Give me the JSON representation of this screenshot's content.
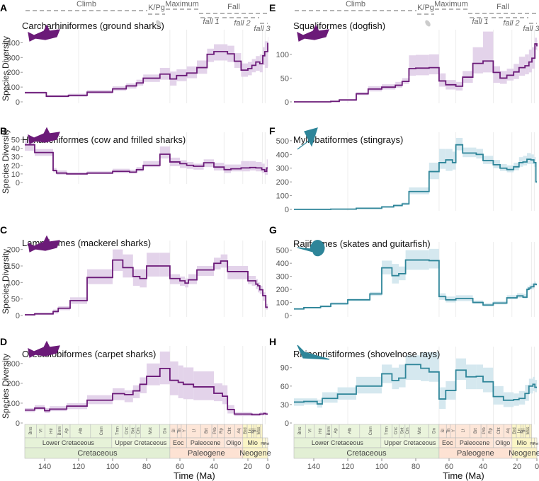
{
  "figure": {
    "xlabel": "Time (Ma)",
    "x_ticks": [
      140,
      120,
      100,
      80,
      60,
      40,
      20,
      0
    ],
    "ylabel": "Species Diversity",
    "phases": {
      "climb": "Climb",
      "kpg": "K/Pg",
      "maximum": "Maximum",
      "fall": "Fall",
      "fall1": "fall 1",
      "fall2": "fall 2",
      "fall3": "fall 3"
    },
    "colors": {
      "shark": "#6b1a78",
      "shark_band": "#e3d3ea",
      "ray": "#2e8599",
      "ray_band": "#d5e8ef",
      "grid": "#ececec",
      "axis_text": "#555555"
    },
    "timescale": {
      "stages": [
        "Brrs",
        "Vl",
        "Htr",
        "Brrm",
        "Ap",
        "Alb",
        "Cnm",
        "Tmn",
        "Cnc",
        "Snt",
        "Cm",
        "Mst",
        "Dn",
        "Sl",
        "Th",
        "Y",
        "Lt",
        "Brt",
        "Prb",
        "Rp",
        "Cht",
        "Aq",
        "Brd",
        "Ln",
        "Srr",
        "Trt",
        "Mss"
      ],
      "epochs": [
        "Lower Cretaceous",
        "Upper Cretaceous",
        "Eoc",
        "Paleocene",
        "Oligo",
        "Mio",
        "Plio",
        "Plei"
      ],
      "periods": [
        "Cretaceous",
        "Paleogene",
        "Neogene"
      ]
    }
  },
  "chart_data": [
    {
      "panel": "A",
      "title": "Carcharhiniformes (ground sharks)",
      "type": "line",
      "group": "shark",
      "icon": "hammerhead-shark-icon",
      "ylim": [
        0,
        450
      ],
      "yticks": [
        0,
        100,
        200,
        300,
        400
      ],
      "x": [
        152,
        139,
        126,
        115,
        100,
        92,
        86,
        82,
        72,
        66,
        62,
        56,
        50,
        44,
        40,
        32,
        28,
        24,
        20,
        16,
        12,
        8,
        5,
        3,
        0
      ],
      "values": [
        62,
        38,
        44,
        66,
        88,
        108,
        128,
        160,
        188,
        155,
        178,
        195,
        232,
        322,
        340,
        325,
        275,
        215,
        225,
        247,
        270,
        258,
        312,
        340,
        400
      ],
      "lower": [
        55,
        30,
        35,
        55,
        75,
        90,
        110,
        135,
        150,
        110,
        140,
        160,
        190,
        270,
        280,
        270,
        230,
        170,
        180,
        200,
        210,
        200,
        250,
        230,
        240
      ],
      "upper": [
        70,
        45,
        55,
        80,
        105,
        125,
        150,
        185,
        230,
        205,
        220,
        240,
        280,
        360,
        390,
        380,
        330,
        260,
        270,
        290,
        310,
        320,
        370,
        410,
        440
      ]
    },
    {
      "panel": "B",
      "title": "Hexanchiformes (cow and frilled sharks)",
      "type": "line",
      "group": "shark",
      "icon": "frilled-shark-icon",
      "ylim": [
        0,
        52
      ],
      "yticks": [
        0,
        10,
        20,
        30,
        40,
        50
      ],
      "x": [
        152,
        146,
        135,
        133,
        127,
        115,
        100,
        90,
        86,
        82,
        72,
        66,
        60,
        56,
        52,
        46,
        40,
        34,
        30,
        24,
        18,
        12,
        6,
        3,
        1
      ],
      "values": [
        44,
        35,
        14,
        11,
        10,
        11,
        13,
        12,
        15,
        20,
        33,
        24,
        22,
        20,
        19,
        23,
        18,
        15,
        16,
        17,
        17.5,
        17,
        15,
        13,
        17
      ],
      "lower": [
        37,
        31,
        12,
        9,
        9,
        10,
        11,
        11,
        13,
        18,
        28,
        19,
        17,
        16,
        15,
        18,
        14,
        11,
        13,
        13,
        14,
        13,
        11,
        9,
        9
      ],
      "upper": [
        50,
        39,
        17,
        14,
        12,
        13,
        16,
        15,
        18,
        25,
        42,
        29,
        26,
        24,
        22,
        27,
        23,
        21,
        21,
        25,
        25,
        24,
        22,
        18,
        27
      ]
    },
    {
      "panel": "C",
      "title": "Lamniformes (mackerel sharks)",
      "type": "line",
      "group": "shark",
      "icon": "mackerel-shark-icon",
      "ylim": [
        0,
        210
      ],
      "yticks": [
        0,
        50,
        100,
        150,
        200
      ],
      "x": [
        152,
        146,
        135,
        132,
        125,
        115,
        100,
        94,
        88,
        84,
        80,
        72,
        66,
        60,
        57,
        55,
        50,
        40,
        36,
        32,
        20,
        16,
        12,
        10,
        8,
        5,
        2
      ],
      "values": [
        2,
        5,
        12,
        22,
        45,
        115,
        168,
        145,
        118,
        112,
        150,
        150,
        112,
        105,
        98,
        108,
        138,
        158,
        165,
        133,
        105,
        105,
        95,
        90,
        78,
        60,
        25
      ],
      "lower": [
        0,
        2,
        6,
        16,
        35,
        95,
        135,
        115,
        90,
        85,
        118,
        118,
        95,
        90,
        85,
        95,
        120,
        140,
        145,
        110,
        95,
        90,
        80,
        70,
        65,
        45,
        18
      ],
      "upper": [
        4,
        8,
        18,
        28,
        55,
        140,
        200,
        185,
        140,
        140,
        190,
        190,
        125,
        118,
        112,
        125,
        150,
        175,
        185,
        150,
        120,
        120,
        110,
        100,
        90,
        70,
        35
      ]
    },
    {
      "panel": "D",
      "title": "Orectolobiformes (carpet sharks)",
      "type": "line",
      "group": "shark",
      "icon": "whale-shark-icon",
      "ylim": [
        0,
        360
      ],
      "yticks": [
        0,
        100,
        200,
        300
      ],
      "x": [
        152,
        146,
        140,
        137,
        127,
        115,
        100,
        93,
        88,
        84,
        80,
        72,
        66,
        61,
        58,
        52,
        40,
        35,
        32,
        28,
        16,
        8,
        4,
        2
      ],
      "values": [
        65,
        75,
        62,
        70,
        85,
        115,
        148,
        143,
        162,
        195,
        235,
        275,
        215,
        205,
        195,
        182,
        150,
        135,
        68,
        45,
        42,
        45,
        48,
        45
      ],
      "lower": [
        55,
        65,
        50,
        60,
        70,
        95,
        115,
        105,
        125,
        150,
        190,
        195,
        140,
        125,
        120,
        115,
        110,
        95,
        48,
        35,
        35,
        38,
        40,
        40
      ],
      "upper": [
        75,
        90,
        75,
        85,
        100,
        140,
        175,
        165,
        190,
        230,
        300,
        360,
        310,
        290,
        280,
        260,
        200,
        190,
        90,
        55,
        50,
        55,
        55,
        52
      ]
    },
    {
      "panel": "E",
      "title": "Squaliformes (dogfish)",
      "type": "line",
      "group": "shark",
      "icon": "dogfish-icon",
      "ylim": [
        0,
        140
      ],
      "yticks": [
        0,
        50,
        100
      ],
      "x": [
        152,
        130,
        125,
        115,
        108,
        100,
        92,
        88,
        84,
        80,
        72,
        66,
        62,
        56,
        52,
        46,
        40,
        34,
        30,
        26,
        22,
        18,
        12,
        8,
        5,
        2,
        0
      ],
      "values": [
        0,
        1,
        4,
        17,
        27,
        31,
        35,
        43,
        70,
        71,
        72,
        44,
        36,
        33,
        52,
        81,
        86,
        62,
        50,
        56,
        63,
        72,
        76,
        84,
        92,
        122,
        117
      ],
      "lower": [
        0,
        0,
        2,
        14,
        22,
        26,
        30,
        38,
        55,
        56,
        58,
        32,
        26,
        24,
        40,
        60,
        62,
        40,
        38,
        45,
        48,
        55,
        58,
        62,
        70,
        110,
        108
      ],
      "upper": [
        0,
        2,
        6,
        20,
        33,
        37,
        42,
        50,
        98,
        99,
        100,
        60,
        46,
        42,
        65,
        115,
        148,
        75,
        65,
        70,
        80,
        95,
        100,
        110,
        115,
        135,
        130
      ]
    },
    {
      "panel": "F",
      "title": "Myliobatiformes (stingrays)",
      "type": "line",
      "group": "ray",
      "icon": "stingray-icon",
      "ylim": [
        0,
        520
      ],
      "yticks": [
        0,
        100,
        200,
        300,
        400,
        500
      ],
      "x": [
        152,
        130,
        115,
        100,
        93,
        88,
        84,
        72,
        66,
        62,
        58,
        56,
        52,
        44,
        40,
        34,
        30,
        26,
        22,
        18,
        14,
        10,
        6,
        3,
        1
      ],
      "values": [
        0,
        2,
        8,
        18,
        28,
        40,
        130,
        275,
        340,
        360,
        340,
        470,
        410,
        400,
        355,
        325,
        300,
        290,
        310,
        340,
        345,
        365,
        360,
        340,
        200
      ],
      "lower": [
        0,
        0,
        5,
        12,
        22,
        32,
        110,
        220,
        295,
        280,
        290,
        430,
        380,
        370,
        330,
        300,
        280,
        270,
        285,
        310,
        320,
        330,
        330,
        310,
        190
      ],
      "upper": [
        0,
        4,
        12,
        24,
        36,
        50,
        160,
        340,
        440,
        440,
        420,
        520,
        450,
        440,
        390,
        360,
        330,
        320,
        340,
        380,
        390,
        410,
        400,
        380,
        210
      ]
    },
    {
      "panel": "G",
      "title": "Rajiformes (skates and guitarfish)",
      "type": "line",
      "group": "ray",
      "icon": "skate-icon",
      "ylim": [
        0,
        520
      ],
      "yticks": [
        0,
        100,
        200,
        300,
        400,
        500
      ],
      "x": [
        152,
        146,
        136,
        130,
        120,
        107,
        100,
        94,
        90,
        86,
        72,
        66,
        62,
        56,
        46,
        40,
        34,
        26,
        20,
        14,
        10,
        8,
        6,
        3,
        1
      ],
      "values": [
        50,
        60,
        70,
        90,
        120,
        165,
        365,
        305,
        320,
        425,
        420,
        145,
        120,
        130,
        100,
        80,
        95,
        135,
        150,
        140,
        200,
        210,
        220,
        240,
        237
      ],
      "lower": [
        45,
        55,
        60,
        80,
        110,
        150,
        315,
        245,
        270,
        350,
        360,
        120,
        100,
        110,
        90,
        70,
        85,
        125,
        135,
        130,
        185,
        195,
        200,
        230,
        230
      ],
      "upper": [
        55,
        65,
        75,
        100,
        130,
        180,
        420,
        395,
        375,
        500,
        510,
        170,
        145,
        155,
        115,
        95,
        110,
        155,
        170,
        165,
        220,
        230,
        245,
        260,
        245
      ]
    },
    {
      "panel": "H",
      "title": "Rhinopristiformes (shovelnose rays)",
      "type": "line",
      "group": "ray",
      "icon": "shovelnose-ray-icon",
      "ylim": [
        0,
        115
      ],
      "yticks": [
        0,
        30,
        60,
        90
      ],
      "x": [
        152,
        146,
        138,
        135,
        126,
        115,
        100,
        94,
        90,
        86,
        77,
        72,
        66,
        62,
        56,
        50,
        44,
        40,
        34,
        28,
        22,
        18,
        12,
        8,
        4,
        2
      ],
      "values": [
        34,
        35,
        31,
        40,
        47,
        60,
        80,
        69,
        73,
        95,
        89,
        83,
        39,
        53,
        86,
        75,
        76,
        67,
        43,
        37,
        38,
        40,
        48,
        60,
        63,
        58
      ],
      "lower": [
        28,
        30,
        25,
        33,
        38,
        48,
        65,
        55,
        58,
        70,
        68,
        67,
        23,
        38,
        70,
        55,
        55,
        50,
        30,
        26,
        28,
        30,
        36,
        48,
        52,
        50
      ],
      "upper": [
        40,
        40,
        38,
        50,
        58,
        75,
        95,
        90,
        95,
        110,
        115,
        115,
        58,
        68,
        105,
        95,
        95,
        90,
        60,
        50,
        48,
        52,
        62,
        72,
        75,
        70
      ]
    }
  ]
}
